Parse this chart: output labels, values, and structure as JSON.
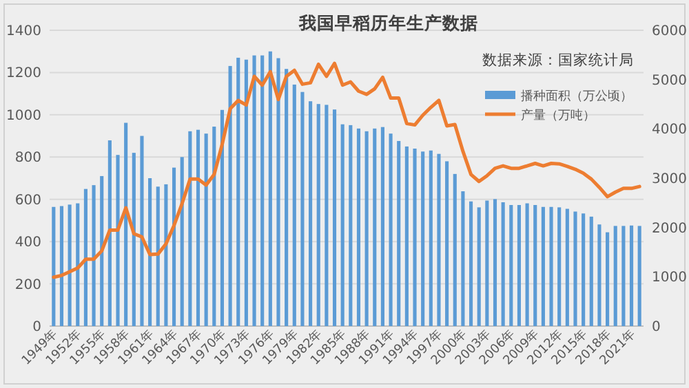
{
  "chart_data": {
    "type": "bar",
    "title": "我国早稻历年生产数据",
    "annotations": [
      "数据来源：国家统计局"
    ],
    "categories": [
      "1949年",
      null,
      null,
      "1952年",
      null,
      null,
      "1955年",
      null,
      null,
      "1958年",
      null,
      null,
      "1961年",
      null,
      null,
      "1964年",
      null,
      null,
      "1967年",
      null,
      null,
      "1970年",
      null,
      null,
      "1973年",
      null,
      null,
      "1976年",
      null,
      null,
      "1979年",
      null,
      null,
      "1982年",
      null,
      null,
      "1985年",
      null,
      null,
      "1988年",
      null,
      null,
      "1991年",
      null,
      null,
      "1994年",
      null,
      null,
      "1997年",
      null,
      null,
      "2000年",
      null,
      null,
      "2003年",
      null,
      null,
      "2006年",
      null,
      null,
      "2009年",
      null,
      null,
      "2012年",
      null,
      null,
      "2015年",
      null,
      null,
      "2018年",
      null,
      null,
      "2021年",
      null
    ],
    "series": [
      {
        "name": "播种面积（万公顷）",
        "color": "#5b9bd5",
        "values": [
          564,
          568,
          575,
          581,
          649,
          667,
          710,
          879,
          810,
          962,
          820,
          900,
          700,
          660,
          671,
          750,
          800,
          922,
          929,
          911,
          944,
          1023,
          1231,
          1270,
          1261,
          1281,
          1281,
          1300,
          1268,
          1217,
          1143,
          1108,
          1064,
          1051,
          1047,
          1025,
          955,
          951,
          935,
          922,
          935,
          942,
          911,
          876,
          850,
          840,
          826,
          831,
          815,
          780,
          720,
          638,
          590,
          562,
          594,
          601,
          586,
          573,
          573,
          581,
          573,
          564,
          564,
          562,
          555,
          542,
          533,
          518,
          481,
          444,
          474,
          474,
          476,
          474
        ]
      },
      {
        "name": "产量（万吨）",
        "type": "line",
        "axis": "y2",
        "color": "#ed7d31",
        "values": [
          991,
          1028,
          1103,
          1178,
          1357,
          1357,
          1526,
          1948,
          1948,
          2399,
          1873,
          1808,
          1451,
          1460,
          1667,
          2042,
          2483,
          2981,
          2981,
          2859,
          3075,
          3685,
          4408,
          4577,
          4484,
          5066,
          4887,
          5160,
          4596,
          5066,
          5188,
          4906,
          4934,
          5310,
          5066,
          5329,
          4887,
          4953,
          4765,
          4700,
          4812,
          5047,
          4624,
          4624,
          4108,
          4080,
          4277,
          4437,
          4577,
          4061,
          4089,
          3545,
          3075,
          2934,
          3050,
          3200,
          3250,
          3200,
          3200,
          3250,
          3300,
          3250,
          3300,
          3290,
          3240,
          3180,
          3100,
          2981,
          2812,
          2624,
          2718,
          2793,
          2793,
          2831
        ]
      }
    ],
    "ylim": [
      0,
      1400
    ],
    "yticks": [
      0,
      200,
      400,
      600,
      800,
      1000,
      1200,
      1400
    ],
    "y2lim": [
      0,
      6000
    ],
    "y2ticks": [
      0,
      1000,
      2000,
      3000,
      4000,
      5000,
      6000
    ],
    "grid": "y",
    "legend": "top right"
  }
}
